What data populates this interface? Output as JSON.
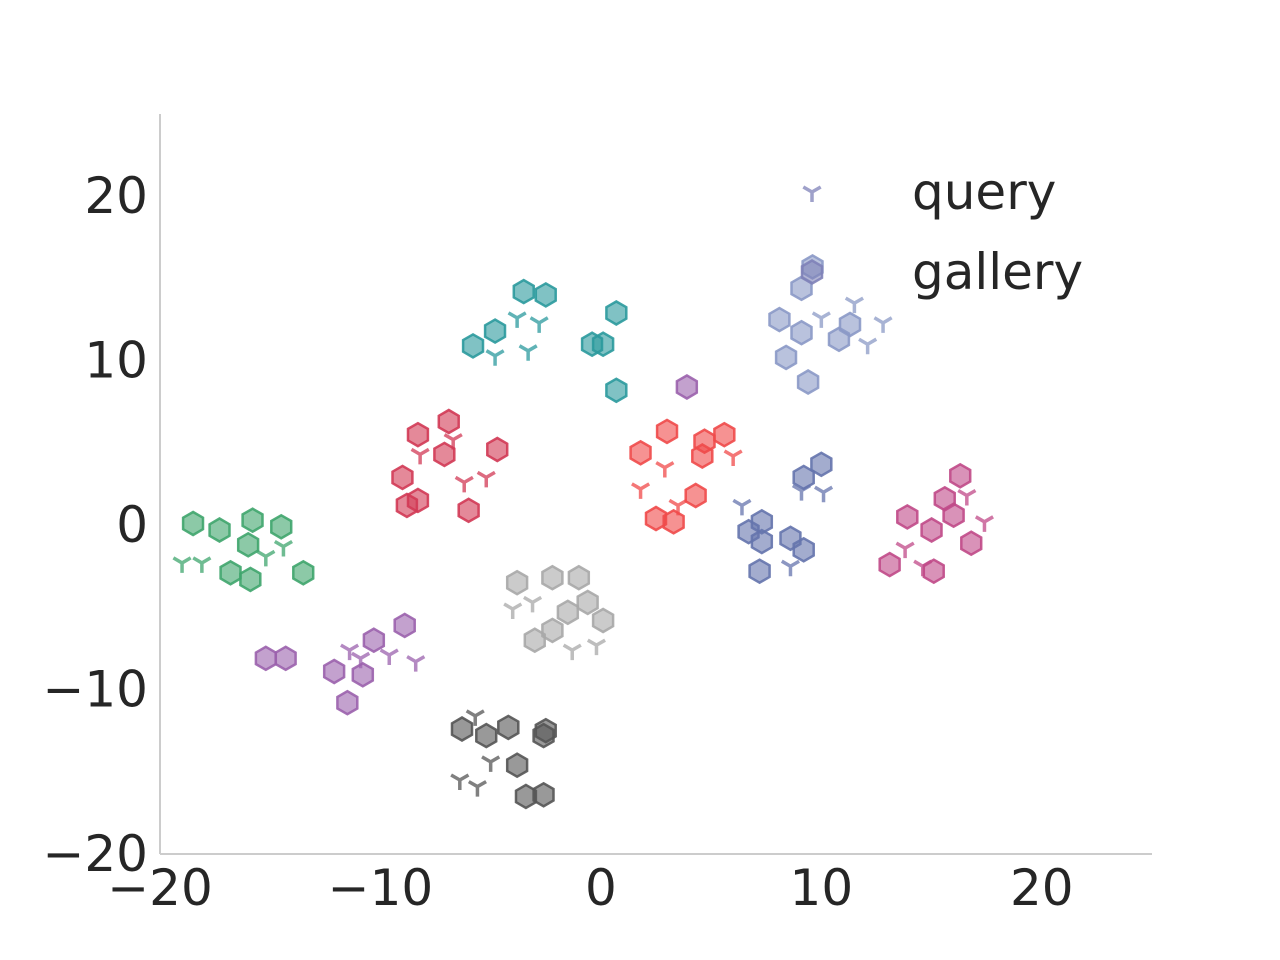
{
  "chart_data": {
    "type": "scatter",
    "title": "",
    "xlabel": "",
    "ylabel": "",
    "xlim": [
      -20,
      25
    ],
    "ylim": [
      -20,
      25
    ],
    "xticks": [
      -20,
      -10,
      0,
      10,
      20
    ],
    "yticks": [
      -20,
      -10,
      0,
      10,
      20
    ],
    "xtick_labels": [
      "−20",
      "−10",
      "0",
      "10",
      "20"
    ],
    "ytick_labels": [
      "−20",
      "−10",
      "0",
      "10",
      "20"
    ],
    "grid": false,
    "legend": {
      "position": "top-right",
      "entries": [
        {
          "label": "query",
          "marker": "tri-down",
          "color": "#7f82b8"
        },
        {
          "label": "gallery",
          "marker": "hexagon",
          "color": "#7f82b8"
        }
      ]
    },
    "series": [
      {
        "color": "#3fa56d",
        "query": [
          [
            -19,
            -2.3
          ],
          [
            -18.1,
            -2.3
          ],
          [
            -15.2,
            -1.9
          ],
          [
            -14.4,
            -1.3
          ]
        ],
        "gallery": [
          [
            -18.5,
            0.1
          ],
          [
            -17.3,
            -0.3
          ],
          [
            -15.8,
            0.3
          ],
          [
            -14.5,
            -0.1
          ],
          [
            -16.0,
            -1.2
          ],
          [
            -16.8,
            -2.9
          ],
          [
            -15.9,
            -3.3
          ],
          [
            -13.5,
            -2.9
          ]
        ]
      },
      {
        "color": "#2b9a9d",
        "query": [
          [
            -3.8,
            12.6
          ],
          [
            -2.8,
            12.3
          ],
          [
            -4.8,
            10.3
          ],
          [
            -3.3,
            10.6
          ]
        ],
        "gallery": [
          [
            -3.5,
            14.2
          ],
          [
            -2.5,
            14.0
          ],
          [
            -4.8,
            11.8
          ],
          [
            -5.8,
            10.9
          ],
          [
            -0.4,
            11.0
          ],
          [
            0.1,
            11.0
          ],
          [
            0.7,
            12.9
          ],
          [
            0.7,
            8.2
          ]
        ]
      },
      {
        "color": "#8b99c6",
        "query": [
          [
            10.0,
            12.6
          ],
          [
            11.5,
            13.5
          ],
          [
            12.8,
            12.3
          ],
          [
            12.1,
            11.0
          ]
        ],
        "gallery": [
          [
            9.6,
            15.7
          ],
          [
            9.1,
            14.4
          ],
          [
            8.1,
            12.5
          ],
          [
            9.1,
            11.7
          ],
          [
            11.3,
            12.2
          ],
          [
            10.8,
            11.3
          ],
          [
            8.4,
            10.2
          ],
          [
            9.4,
            8.7
          ]
        ]
      },
      {
        "color": "#d23a55",
        "query": [
          [
            -6.7,
            5.2
          ],
          [
            -8.2,
            4.3
          ],
          [
            -5.2,
            2.9
          ],
          [
            -6.2,
            2.6
          ]
        ],
        "gallery": [
          [
            -6.9,
            6.3
          ],
          [
            -8.3,
            5.5
          ],
          [
            -4.7,
            4.6
          ],
          [
            -7.1,
            4.3
          ],
          [
            -9.0,
            2.9
          ],
          [
            -8.3,
            1.5
          ],
          [
            -8.8,
            1.2
          ],
          [
            -6.0,
            0.9
          ]
        ]
      },
      {
        "color": "#f04a4a",
        "query": [
          [
            2.9,
            3.5
          ],
          [
            6.0,
            4.2
          ],
          [
            1.8,
            2.2
          ],
          [
            3.5,
            1.2
          ]
        ],
        "gallery": [
          [
            3.0,
            5.7
          ],
          [
            5.6,
            5.5
          ],
          [
            4.7,
            5.1
          ],
          [
            1.8,
            4.4
          ],
          [
            4.6,
            4.2
          ],
          [
            4.3,
            1.8
          ],
          [
            2.5,
            0.4
          ],
          [
            3.3,
            0.2
          ]
        ]
      },
      {
        "color": "#6574ad",
        "query": [
          [
            6.4,
            1.2
          ],
          [
            9.1,
            2.1
          ],
          [
            10.1,
            2.0
          ],
          [
            8.6,
            -2.5
          ]
        ],
        "gallery": [
          [
            10.0,
            3.7
          ],
          [
            9.2,
            2.9
          ],
          [
            7.3,
            0.2
          ],
          [
            6.7,
            -0.4
          ],
          [
            7.3,
            -1.0
          ],
          [
            8.6,
            -0.8
          ],
          [
            9.2,
            -1.5
          ],
          [
            7.2,
            -2.8
          ]
        ]
      },
      {
        "color": "#c04a88",
        "query": [
          [
            16.6,
            1.8
          ],
          [
            17.4,
            0.2
          ],
          [
            13.8,
            -1.4
          ],
          [
            14.6,
            -2.5
          ]
        ],
        "gallery": [
          [
            16.3,
            3.0
          ],
          [
            15.6,
            1.6
          ],
          [
            13.9,
            0.5
          ],
          [
            16.0,
            0.6
          ],
          [
            15.0,
            -0.3
          ],
          [
            16.8,
            -1.1
          ],
          [
            13.1,
            -2.4
          ],
          [
            15.1,
            -2.8
          ]
        ]
      },
      {
        "color": "#a8a8a8",
        "query": [
          [
            -4.0,
            -5.1
          ],
          [
            -3.1,
            -4.7
          ],
          [
            -1.3,
            -7.6
          ],
          [
            -0.2,
            -7.3
          ]
        ],
        "gallery": [
          [
            -3.8,
            -3.5
          ],
          [
            -2.2,
            -3.2
          ],
          [
            -1.0,
            -3.2
          ],
          [
            -0.6,
            -4.7
          ],
          [
            -1.5,
            -5.3
          ],
          [
            0.1,
            -5.8
          ],
          [
            -2.2,
            -6.4
          ],
          [
            -3.0,
            -7.0
          ]
        ]
      },
      {
        "color": "#9b62ad",
        "query": [
          [
            -11.4,
            -7.6
          ],
          [
            -10.9,
            -8.1
          ],
          [
            -9.6,
            -7.9
          ],
          [
            -8.4,
            -8.3
          ]
        ],
        "gallery": [
          [
            -15.2,
            -8.1
          ],
          [
            -14.3,
            -8.1
          ],
          [
            -10.3,
            -7.0
          ],
          [
            -8.9,
            -6.1
          ],
          [
            -12.1,
            -8.9
          ],
          [
            -10.8,
            -9.1
          ],
          [
            -11.5,
            -10.8
          ],
          [
            3.9,
            8.4
          ]
        ]
      },
      {
        "color": "#555555",
        "query": [
          [
            -5.7,
            -11.6
          ],
          [
            -5.0,
            -14.4
          ],
          [
            -6.4,
            -15.5
          ],
          [
            -5.6,
            -15.9
          ]
        ],
        "gallery": [
          [
            -6.3,
            -12.4
          ],
          [
            -5.2,
            -12.8
          ],
          [
            -4.2,
            -12.3
          ],
          [
            -2.5,
            -12.5
          ],
          [
            -2.6,
            -12.8
          ],
          [
            -3.8,
            -14.6
          ],
          [
            -3.4,
            -16.5
          ],
          [
            -2.6,
            -16.4
          ]
        ]
      }
    ]
  }
}
